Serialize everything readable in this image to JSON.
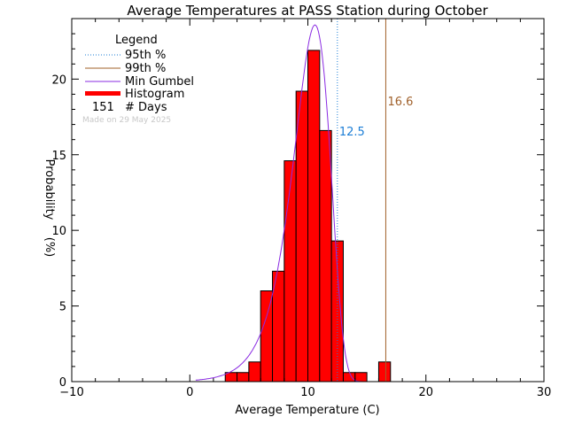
{
  "chart_data": {
    "type": "bar",
    "title": "Average Temperatures at PASS Station during October",
    "xlabel": "Average Temperature (C)",
    "ylabel_line1": "Probability",
    "ylabel_line2": "(%)",
    "xlim": [
      -10,
      30
    ],
    "ylim": [
      0,
      24
    ],
    "xticks": [
      -10,
      0,
      10,
      20,
      30
    ],
    "yticks": [
      0,
      5,
      10,
      15,
      20
    ],
    "histogram": {
      "name": "Histogram",
      "bin_width": 1,
      "bin_lefts": [
        3,
        4,
        5,
        6,
        7,
        8,
        9,
        10,
        11,
        12,
        13,
        14,
        15,
        16,
        17
      ],
      "values": [
        0.6,
        0.6,
        1.3,
        6.0,
        7.3,
        14.6,
        19.2,
        21.9,
        16.6,
        9.3,
        0.6,
        0.6,
        0,
        1.3,
        0
      ]
    },
    "percentile_95": {
      "name": "95th %",
      "value": 12.5,
      "label": "12.5",
      "color": "#1c7ed6"
    },
    "percentile_99": {
      "name": "99th %",
      "value": 16.6,
      "label": "16.6",
      "color": "#a0602a"
    },
    "gumbel": {
      "name": "Min Gumbel",
      "mu": 10.6,
      "beta": 1.56,
      "color": "#8a2be2"
    },
    "legend": {
      "title": "Legend",
      "items": [
        "95th %",
        "99th %",
        "Min Gumbel",
        "Histogram"
      ],
      "days_count": "151",
      "days_label": "# Days",
      "note": "Made on 29 May 2025"
    },
    "colors": {
      "bar": "#ff0000",
      "axis": "#000000"
    }
  }
}
